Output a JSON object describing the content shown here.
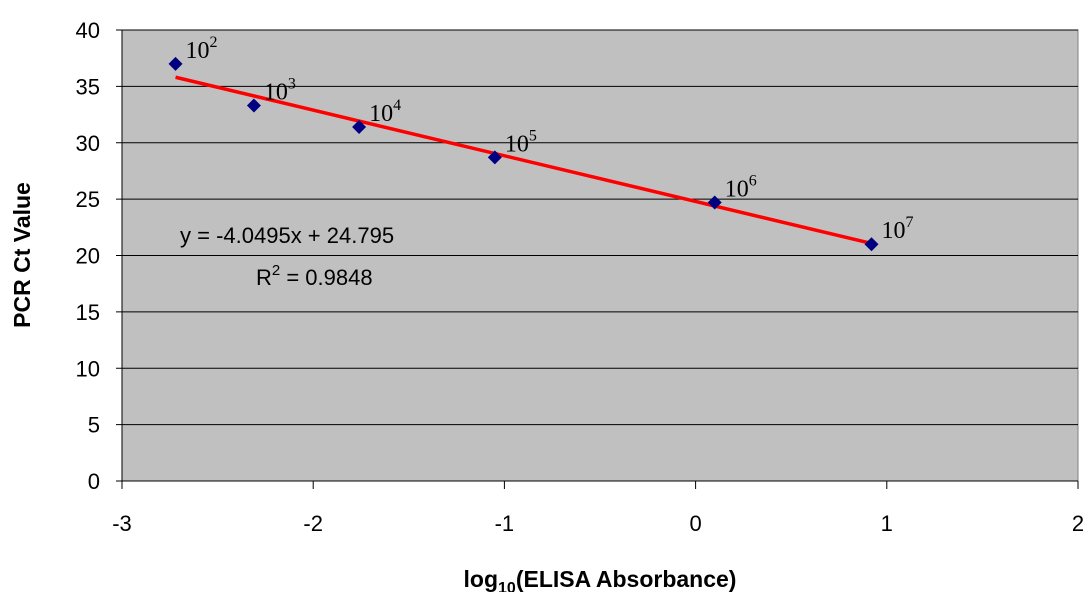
{
  "chart_data": {
    "type": "scatter",
    "x_label": {
      "base": "log",
      "sub": "10",
      "rest": "(ELISA Absorbance)"
    },
    "y_label": "PCR Ct Value",
    "x": [
      -2.72,
      -2.31,
      -1.76,
      -1.05,
      0.1,
      0.92
    ],
    "values": [
      37.0,
      33.3,
      31.4,
      28.7,
      24.7,
      21.0
    ],
    "point_labels": [
      {
        "base": "10",
        "exp": "2"
      },
      {
        "base": "10",
        "exp": "3"
      },
      {
        "base": "10",
        "exp": "4"
      },
      {
        "base": "10",
        "exp": "5"
      },
      {
        "base": "10",
        "exp": "6"
      },
      {
        "base": "10",
        "exp": "7"
      }
    ],
    "color": "#000080",
    "trendline": {
      "slope": -4.0495,
      "intercept": 24.795,
      "color": "#ff0000",
      "equation": "y = -4.0495x + 24.795",
      "r2": {
        "base": "R",
        "exp": "2",
        "rest": " = 0.9848"
      }
    },
    "xlim": [
      -3,
      2
    ],
    "xticks": [
      -3,
      -2,
      -1,
      0,
      1,
      2
    ],
    "ylim": [
      0,
      40
    ],
    "yticks": [
      0,
      5,
      10,
      15,
      20,
      25,
      30,
      35,
      40
    ],
    "grid": true,
    "plot_background": "#c0c0c0"
  }
}
